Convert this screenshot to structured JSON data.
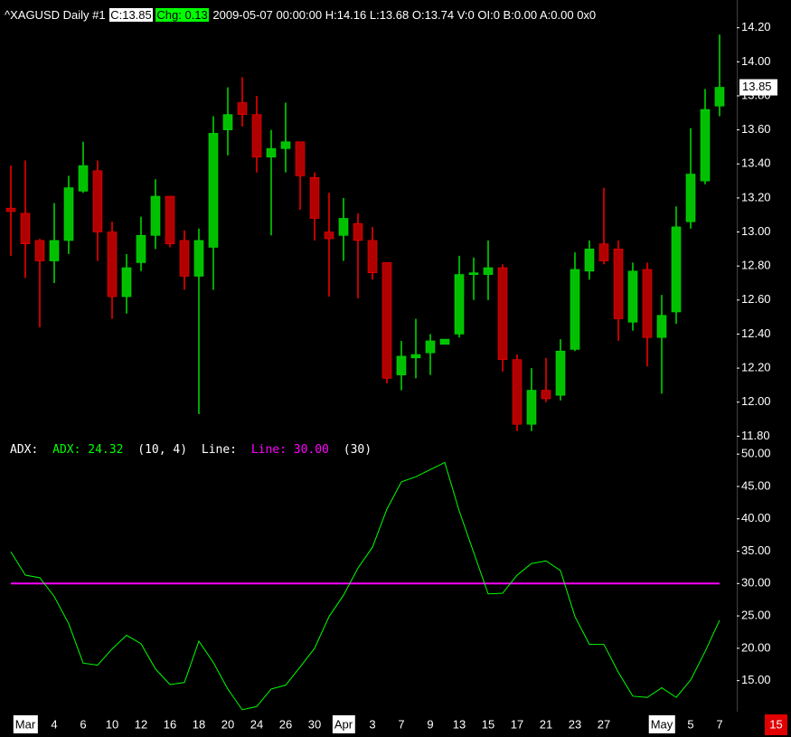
{
  "chart_data": [
    {
      "type": "candlestick",
      "title": "^XAGUSD  Daily  #1",
      "close_label": "C:13.85",
      "change_label": "Chg: 0.13",
      "info": "2009-05-07 00:00:00 H:14.16 L:13.68 O:13.74 V:0 OI:0 B:0.00 A:0.00 0x0",
      "categories": [
        null,
        "Mar",
        null,
        "4",
        null,
        "6",
        null,
        "10",
        null,
        "12",
        null,
        "16",
        null,
        "18",
        null,
        "20",
        null,
        "24",
        null,
        "26",
        null,
        "30",
        null,
        "Apr",
        null,
        "3",
        null,
        "7",
        null,
        "9",
        null,
        "13",
        null,
        "15",
        null,
        "17",
        null,
        "21",
        null,
        "23",
        null,
        "27",
        null,
        null,
        null,
        "May",
        null,
        "5",
        null,
        "7"
      ],
      "open": [
        13.14,
        13.11,
        12.95,
        12.83,
        12.95,
        13.24,
        13.36,
        13.0,
        12.62,
        12.82,
        12.98,
        13.21,
        12.95,
        12.74,
        12.91,
        13.6,
        13.76,
        13.69,
        13.44,
        13.49,
        13.53,
        13.32,
        13.0,
        12.98,
        13.05,
        12.95,
        12.82,
        12.16,
        12.26,
        12.29,
        12.34,
        12.4,
        12.75,
        12.75,
        12.79,
        12.25,
        11.87,
        12.07,
        12.04,
        12.31,
        12.77,
        12.93,
        12.9,
        12.47,
        12.78,
        12.38,
        12.53,
        13.06,
        13.3,
        13.74
      ],
      "high": [
        13.39,
        13.42,
        12.96,
        13.17,
        13.33,
        13.53,
        13.42,
        13.06,
        12.87,
        13.09,
        13.31,
        13.21,
        13.01,
        13.02,
        13.68,
        13.85,
        13.91,
        13.8,
        13.6,
        13.76,
        13.53,
        13.35,
        13.23,
        13.2,
        13.11,
        13.03,
        12.82,
        12.36,
        12.49,
        12.4,
        12.37,
        12.86,
        12.85,
        12.95,
        12.81,
        12.28,
        12.2,
        12.26,
        12.37,
        12.88,
        12.95,
        13.26,
        12.95,
        12.82,
        12.82,
        12.63,
        13.15,
        13.61,
        13.84,
        14.16
      ],
      "low": [
        12.86,
        12.73,
        12.44,
        12.7,
        12.87,
        13.23,
        12.83,
        12.49,
        12.52,
        12.77,
        12.9,
        12.91,
        12.66,
        11.93,
        12.66,
        13.45,
        13.62,
        13.35,
        12.98,
        13.35,
        13.13,
        12.95,
        12.62,
        12.83,
        12.61,
        12.72,
        12.11,
        12.07,
        12.14,
        12.16,
        12.34,
        12.38,
        12.6,
        12.6,
        12.18,
        11.83,
        11.83,
        12.0,
        12.01,
        12.3,
        12.72,
        12.81,
        12.36,
        12.42,
        12.21,
        12.05,
        12.46,
        13.02,
        13.28,
        13.68
      ],
      "close": [
        13.12,
        12.93,
        12.83,
        12.95,
        13.26,
        13.39,
        13.0,
        12.62,
        12.79,
        12.98,
        13.21,
        12.93,
        12.74,
        12.95,
        13.58,
        13.69,
        13.69,
        13.44,
        13.49,
        13.53,
        13.33,
        13.08,
        12.96,
        13.08,
        12.95,
        12.76,
        12.14,
        12.27,
        12.28,
        12.36,
        12.37,
        12.75,
        12.76,
        12.79,
        12.25,
        11.87,
        12.07,
        12.02,
        12.3,
        12.78,
        12.9,
        12.83,
        12.49,
        12.77,
        12.38,
        12.51,
        13.03,
        13.34,
        13.72,
        13.85
      ],
      "up_color": "#00c000",
      "up_wick_color": "#00e000",
      "down_color": "#b00000",
      "down_wick_color": "#ff0000",
      "last_price": 13.85,
      "ylim": [
        11.77,
        14.31
      ],
      "yticks": [
        {
          "value": 11.8,
          "label": "11.80"
        },
        {
          "value": 12,
          "label": "12.00"
        },
        {
          "value": 12.2,
          "label": "12.20"
        },
        {
          "value": 12.4,
          "label": "12.40"
        },
        {
          "value": 12.6,
          "label": "12.60"
        },
        {
          "value": 12.8,
          "label": "12.80"
        },
        {
          "value": 13,
          "label": "13.00"
        },
        {
          "value": 13.2,
          "label": "13.20"
        },
        {
          "value": 13.4,
          "label": "13.40"
        },
        {
          "value": 13.6,
          "label": "13.60"
        },
        {
          "value": 13.8,
          "label": "13.80"
        },
        {
          "value": 14,
          "label": "14.00"
        },
        {
          "value": 14.2,
          "label": "14.20"
        }
      ],
      "corner_label": "15"
    },
    {
      "type": "line",
      "indicator_label": "ADX:",
      "series": [
        {
          "name": "ADX: 24.32",
          "color": "#00ff00",
          "values": [
            34.9,
            31.3,
            30.9,
            28.0,
            23.8,
            17.7,
            17.4,
            19.9,
            22.0,
            20.7,
            16.8,
            14.4,
            14.7,
            21.1,
            17.8,
            13.7,
            10.5,
            11.0,
            13.7,
            14.3,
            17.1,
            20.0,
            24.9,
            28.2,
            32.4,
            35.6,
            41.5,
            45.7,
            46.5,
            47.6,
            48.7,
            41.2,
            34.8,
            28.4,
            28.5,
            31.3,
            33.1,
            33.5,
            32.0,
            24.9,
            20.6,
            20.6,
            16.3,
            12.6,
            12.4,
            13.9,
            12.4,
            15.1,
            19.5,
            24.32
          ]
        }
      ],
      "series_params": "(10, 4)",
      "level_label": "Line:",
      "level_name": "Line: 30.00",
      "level": 30,
      "level_color": "#ff00ff",
      "level_params": "(30)",
      "ylim": [
        10.2,
        51.7
      ],
      "yticks": [
        {
          "value": 15,
          "label": "15.00"
        },
        {
          "value": 20,
          "label": "20.00"
        },
        {
          "value": 25,
          "label": "25.00"
        },
        {
          "value": 30,
          "label": "30.00"
        },
        {
          "value": 35,
          "label": "35.00"
        },
        {
          "value": 40,
          "label": "40.00"
        },
        {
          "value": 45,
          "label": "45.00"
        },
        {
          "value": 50,
          "label": "50.00"
        }
      ]
    }
  ]
}
